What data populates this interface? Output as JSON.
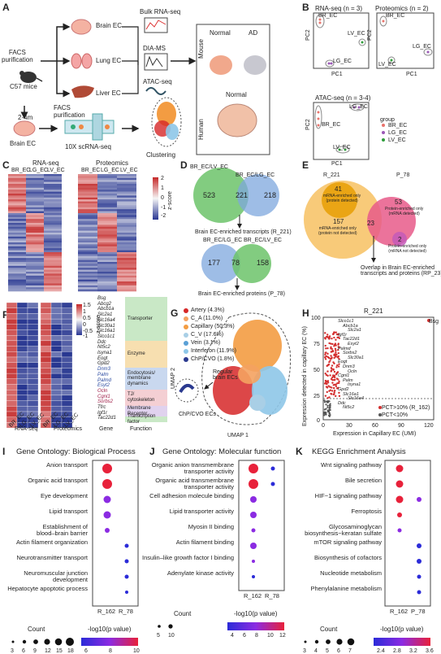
{
  "panels": {
    "A": {
      "label": "A",
      "mouse": "C57 mice",
      "age": "2-4m",
      "facs1": "FACS\npurification",
      "facs2": "FACS\npurification",
      "brain_ec": "Brain EC",
      "lung_ec": "Lung EC",
      "liver_ec": "Liver EC",
      "bulk": "Bulk RNA-seq",
      "dia": "DIA-MS",
      "atac": "ATAC-seq",
      "scrna": "10X scRNA-seq",
      "clustering": "Clustering",
      "mouse_label": "Mouse",
      "human_label": "Human",
      "normal1": "Normal",
      "ad": "AD",
      "normal2": "Normal"
    },
    "B": {
      "label": "B",
      "rna_title": "RNA-seq (n = 3)",
      "prot_title": "Proteomics (n = 2)",
      "atac_title": "ATAC-seq (n = 3-4)",
      "pc1": "PC1",
      "pc2": "PC2",
      "br": "BR_EC",
      "lv": "LV_EC",
      "lg": "LG_EC",
      "group_title": "group",
      "groups": [
        "BR_EC",
        "LG_EC",
        "LV_EC"
      ],
      "colors": {
        "br": "#e8736c",
        "lg": "#9b59b6",
        "lv": "#2e9d3a"
      }
    },
    "C": {
      "label": "C",
      "rna": "RNA-seq",
      "prot": "Proteomics",
      "cols": [
        "BR_EC",
        "LG_EC",
        "LV_EC",
        "BR_EC",
        "LG_EC",
        "LV_EC"
      ],
      "zscore": "z-score",
      "ticks": [
        "2",
        "1",
        "0",
        "-1",
        "-2"
      ]
    },
    "D": {
      "label": "D",
      "v1_left": "BR_EC/LV_EC",
      "v1_right": "BR_EC/LG_EC",
      "v1_a": "523",
      "v1_ab": "221",
      "v1_b": "218",
      "v1_caption": "Brain EC-enriched transcripts (R_221)",
      "v2_left": "BR_EC/LG_EC",
      "v2_right": "BR_EC/LV_EC",
      "v2_a": "177",
      "v2_ab": "78",
      "v2_b": "158",
      "v2_caption": "Brain EC-enriched proteins (P_78)"
    },
    "E": {
      "label": "E",
      "r221": "R_221",
      "p78": "P_78",
      "n41": "41",
      "t41": "mRNA-enriched only\n(protein detected)",
      "n157": "157",
      "t157": "mRNA-enriched only\n(protein not detected)",
      "n23": "23",
      "n53": "53",
      "t53": "Protein-enriched only\n(mRNA detected)",
      "n2": "2",
      "t2": "Protein-enriched only\n(mRNA not detected)",
      "caption": "Overlap in Brain EC-enriched\ntranscripts and proteins (RP_23)"
    },
    "F": {
      "label": "F",
      "genes": [
        "Bsg",
        "Abcg2",
        "Abcb1a",
        "Slc2a1",
        "Slc16a4",
        "Slc30a1",
        "Slc16a1",
        "Slco1c1",
        "Ddc",
        "Nt5c2",
        "Isyna1",
        "Eogt",
        "Gpd2",
        "Dnm3",
        "Palm",
        "Palmd",
        "Esyt2",
        "Ocln",
        "Cgnl1",
        "Sorbs2",
        "Tfrc",
        "Igf1r",
        "Tac22d1"
      ],
      "functions": [
        "Transporter",
        "Enzyme",
        "Endocytosis/\nmembrane\ndynamics",
        "TJ/\ncytoskeleton",
        "Membrane\nReceptor",
        "Transcription\nfactor"
      ],
      "function_colors": [
        "#c9e8c6",
        "#f7dfb0",
        "#c9d8ef",
        "#f4cfd3",
        "#e0d2ee",
        "#c9e8c6"
      ],
      "cols": [
        "BR_EC",
        "LG_EC",
        "LV_EC",
        "BR_EC",
        "LG_EC",
        "LV_EC"
      ],
      "rna": "RNA-seq",
      "prot": "Proteomics",
      "gene": "Gene",
      "function": "Function",
      "zscore": "z-score",
      "ticks": [
        "1.5",
        "1",
        "0.5",
        "0",
        "-0.5",
        "-1"
      ]
    },
    "G": {
      "label": "G",
      "legend": [
        "Artery (4.3%)",
        "C_A (11.0%)",
        "Capillary (50.3%)",
        "C_V (17.6%)",
        "Vein (3.1%)",
        "Interferon (11.9%)",
        "ChP/CVO (1.8%)"
      ],
      "legend_colors": [
        "#d62728",
        "#f4a261",
        "#f39c42",
        "#a9cfe6",
        "#5aa0d6",
        "#8ec7e8",
        "#2b3a8f"
      ],
      "regular": "Regular\nbrain ECs",
      "chp": "ChP/CVO ECs",
      "xlab": "UMAP 1",
      "ylab": "UMAP 2"
    },
    "H": {
      "label": "H",
      "title": "R_221",
      "ylab": "Expression detected in capillary EC (%)",
      "xlab": "Expression in Capillary EC (UMI)",
      "yticks": [
        "100",
        "75",
        "50",
        "25",
        "0"
      ],
      "xticks": [
        "0",
        "30",
        "60",
        "90",
        "120"
      ],
      "legend1": "PCT>10% (R_162)",
      "legend2": "PCT<10%",
      "genes": [
        "Slco1c1",
        "Abcb1a",
        "Slc2a1",
        "Igf1r",
        "Tac22d1",
        "Esyt2",
        "Palmd",
        "Sorbs2",
        "Slc30a1",
        "Eogt",
        "Dnm3",
        "Ocln",
        "Cgnl1",
        "Palm",
        "Isyna1",
        "Gpd2",
        "Slc16a1",
        "Slc16a4",
        "Ddc",
        "Nt5c2"
      ],
      "bsg": "Bsg"
    },
    "I": {
      "label": "I",
      "title": "Gene Ontology: Biological Process",
      "terms": [
        "Anion transport",
        "Organic acid transport",
        "Eye development",
        "Lipid transport",
        "Establishment of\nblood–brain barrier",
        "Actin filament organization",
        "Neurotransmitter transport",
        "Neuromuscular junction\ndevelopment",
        "Hepatocyte apoptotic process"
      ],
      "cols": [
        "R_162",
        "R_78"
      ],
      "count_label": "Count",
      "count_ticks": [
        "3",
        "6",
        "9",
        "12",
        "15",
        "18"
      ],
      "p_label": "-log10(p value)",
      "p_ticks": [
        "6",
        "8",
        "10"
      ]
    },
    "J": {
      "label": "J",
      "title": "Gene Ontology: Molecular function",
      "terms": [
        "Organic anion transmembrane\ntransporter activity",
        "Organic acid transmembrane\ntransporter activity",
        "Cell adhesion molecule binding",
        "Lipid transporter activity",
        "Myosin II binding",
        "Actin filament binding",
        "Insulin–like growth factor I binding",
        "Adenylate kinase activity"
      ],
      "cols": [
        "R_162",
        "R_78"
      ],
      "count_label": "Count",
      "count_ticks": [
        "5",
        "10"
      ],
      "p_label": "-log10(p value)",
      "p_ticks": [
        "4",
        "6",
        "8",
        "10",
        "12"
      ]
    },
    "K": {
      "label": "K",
      "title": "KEGG Enrichment Analysis",
      "terms": [
        "Wnt signaling pathway",
        "Bile secretion",
        "HIF−1 signaling pathway",
        "Ferroptosis",
        "Glycosaminoglycan\nbiosynthesis−keratan sulfate",
        "mTOR signaling pathway",
        "Biosynthesis of cofactors",
        "Nucleotide metabolism",
        "Phenylalanine metabolism"
      ],
      "cols": [
        "R_162",
        "P_78"
      ],
      "count_label": "Count",
      "count_ticks": [
        "3",
        "4",
        "5",
        "6",
        "7"
      ],
      "p_label": "-log10(p value)",
      "p_ticks": [
        "2.4",
        "2.8",
        "3.2",
        "3.6"
      ]
    }
  }
}
